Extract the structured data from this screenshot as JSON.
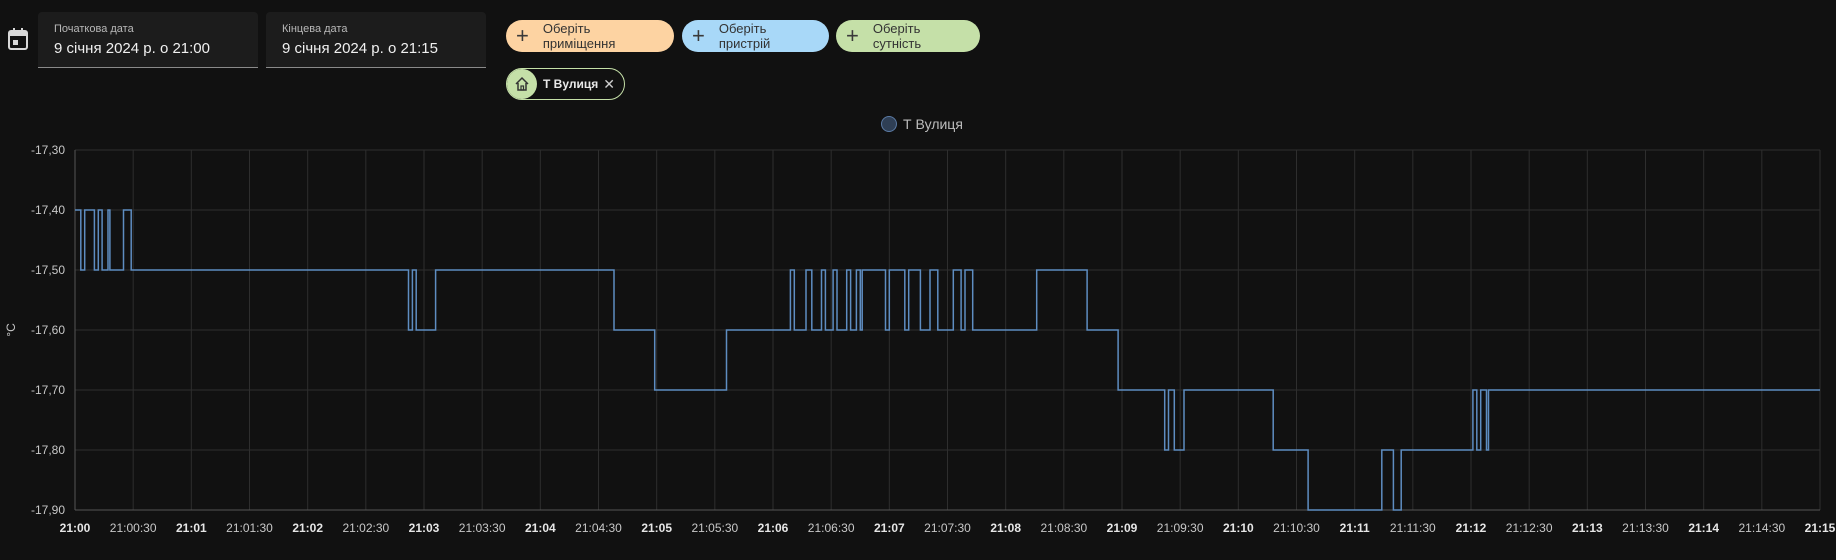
{
  "start_date": {
    "label": "Початкова дата",
    "value": "9 січня 2024 р. о 21:00"
  },
  "end_date": {
    "label": "Кінцева дата",
    "value": "9 січня 2024 р. о 21:15"
  },
  "buttons": {
    "area": {
      "label": "Оберіть приміщення",
      "color": "#fdd3a2"
    },
    "device": {
      "label": "Оберіть пристрій",
      "color": "#a8d8f8"
    },
    "entity": {
      "label": "Оберіть сутність",
      "color": "#c5e0a8"
    }
  },
  "selected_entity": {
    "label": "Т Вулиця",
    "icon": "home-icon",
    "close_icon": "close-icon"
  },
  "icons": {
    "calendar": "calendar-icon"
  },
  "colors": {
    "line": "#5e8dc1",
    "background": "#111111",
    "grid": "#2e2e2e"
  },
  "chart_data": {
    "type": "line",
    "step": true,
    "legend": "top-center",
    "grid": true,
    "ylabel": "°C",
    "ylim": [
      -17.9,
      -17.3
    ],
    "yticks": [
      "-17,30",
      "-17,40",
      "-17,50",
      "-17,60",
      "-17,70",
      "-17,80",
      "-17,90"
    ],
    "xlim": [
      "21:00",
      "21:15"
    ],
    "xticks": [
      {
        "label": "21:00",
        "major": true
      },
      {
        "label": "21:00:30",
        "major": false
      },
      {
        "label": "21:01",
        "major": true
      },
      {
        "label": "21:01:30",
        "major": false
      },
      {
        "label": "21:02",
        "major": true
      },
      {
        "label": "21:02:30",
        "major": false
      },
      {
        "label": "21:03",
        "major": true
      },
      {
        "label": "21:03:30",
        "major": false
      },
      {
        "label": "21:04",
        "major": true
      },
      {
        "label": "21:04:30",
        "major": false
      },
      {
        "label": "21:05",
        "major": true
      },
      {
        "label": "21:05:30",
        "major": false
      },
      {
        "label": "21:06",
        "major": true
      },
      {
        "label": "21:06:30",
        "major": false
      },
      {
        "label": "21:07",
        "major": true
      },
      {
        "label": "21:07:30",
        "major": false
      },
      {
        "label": "21:08",
        "major": true
      },
      {
        "label": "21:08:30",
        "major": false
      },
      {
        "label": "21:09",
        "major": true
      },
      {
        "label": "21:09:30",
        "major": false
      },
      {
        "label": "21:10",
        "major": true
      },
      {
        "label": "21:10:30",
        "major": false
      },
      {
        "label": "21:11",
        "major": true
      },
      {
        "label": "21:11:30",
        "major": false
      },
      {
        "label": "21:12",
        "major": true
      },
      {
        "label": "21:12:30",
        "major": false
      },
      {
        "label": "21:13",
        "major": true
      },
      {
        "label": "21:13:30",
        "major": false
      },
      {
        "label": "21:14",
        "major": true
      },
      {
        "label": "21:14:30",
        "major": false
      },
      {
        "label": "21:15",
        "major": true
      }
    ],
    "series": [
      {
        "name": "Т Вулиця",
        "points": [
          [
            "21:00:00",
            -17.4
          ],
          [
            "21:00:03",
            -17.5
          ],
          [
            "21:00:05",
            -17.4
          ],
          [
            "21:00:10",
            -17.5
          ],
          [
            "21:00:12",
            -17.4
          ],
          [
            "21:00:14",
            -17.5
          ],
          [
            "21:00:17",
            -17.4
          ],
          [
            "21:00:18",
            -17.5
          ],
          [
            "21:00:25",
            -17.4
          ],
          [
            "21:00:29",
            -17.5
          ],
          [
            "21:02:52",
            -17.6
          ],
          [
            "21:02:54",
            -17.5
          ],
          [
            "21:02:56",
            -17.6
          ],
          [
            "21:03:06",
            -17.5
          ],
          [
            "21:04:38",
            -17.6
          ],
          [
            "21:04:59",
            -17.7
          ],
          [
            "21:05:36",
            -17.6
          ],
          [
            "21:06:09",
            -17.5
          ],
          [
            "21:06:11",
            -17.6
          ],
          [
            "21:06:17",
            -17.5
          ],
          [
            "21:06:20",
            -17.6
          ],
          [
            "21:06:25",
            -17.5
          ],
          [
            "21:06:27",
            -17.6
          ],
          [
            "21:06:31",
            -17.5
          ],
          [
            "21:06:33",
            -17.6
          ],
          [
            "21:06:38",
            -17.5
          ],
          [
            "21:06:40",
            -17.6
          ],
          [
            "21:06:43",
            -17.5
          ],
          [
            "21:06:45",
            -17.6
          ],
          [
            "21:06:46",
            -17.5
          ],
          [
            "21:06:58",
            -17.6
          ],
          [
            "21:07:00",
            -17.5
          ],
          [
            "21:07:08",
            -17.6
          ],
          [
            "21:07:10",
            -17.5
          ],
          [
            "21:07:16",
            -17.6
          ],
          [
            "21:07:21",
            -17.5
          ],
          [
            "21:07:25",
            -17.6
          ],
          [
            "21:07:33",
            -17.5
          ],
          [
            "21:07:37",
            -17.6
          ],
          [
            "21:07:39",
            -17.5
          ],
          [
            "21:07:43",
            -17.6
          ],
          [
            "21:08:16",
            -17.5
          ],
          [
            "21:08:42",
            -17.6
          ],
          [
            "21:08:58",
            -17.7
          ],
          [
            "21:09:22",
            -17.8
          ],
          [
            "21:09:24",
            -17.7
          ],
          [
            "21:09:27",
            -17.8
          ],
          [
            "21:09:32",
            -17.7
          ],
          [
            "21:10:18",
            -17.8
          ],
          [
            "21:10:36",
            -17.9
          ],
          [
            "21:11:14",
            -17.8
          ],
          [
            "21:11:20",
            -17.9
          ],
          [
            "21:11:24",
            -17.8
          ],
          [
            "21:12:01",
            -17.7
          ],
          [
            "21:12:03",
            -17.8
          ],
          [
            "21:12:05",
            -17.7
          ],
          [
            "21:12:08",
            -17.8
          ],
          [
            "21:12:09",
            -17.7
          ],
          [
            "21:15:00",
            -17.7
          ]
        ]
      }
    ]
  }
}
